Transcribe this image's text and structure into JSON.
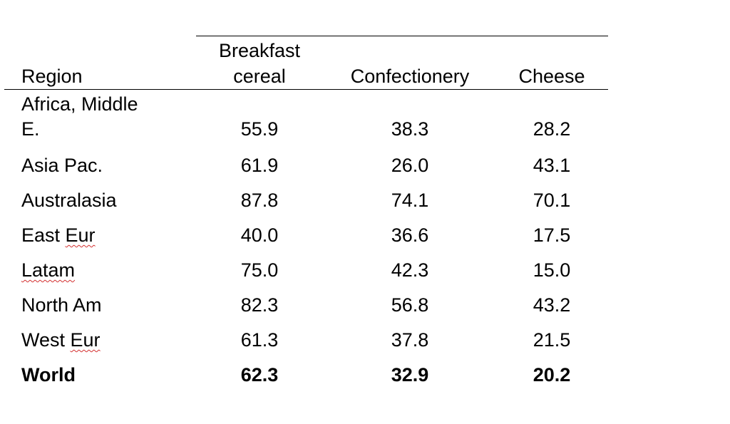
{
  "table": {
    "headers": {
      "region": "Region",
      "col1_line1": "Breakfast",
      "col1_line2": "cereal",
      "col2": "Confectionery",
      "col3": "Cheese"
    },
    "rows": [
      {
        "region_line1": "Africa, Middle",
        "region_line2": "E.",
        "v1": "55.9",
        "v2": "38.3",
        "v3": "28.2"
      },
      {
        "region": "Asia Pac.",
        "v1": "61.9",
        "v2": "26.0",
        "v3": "43.1"
      },
      {
        "region": "Australasia",
        "v1": "87.8",
        "v2": "74.1",
        "v3": "70.1"
      },
      {
        "region_a": "East ",
        "region_b": "Eur",
        "v1": "40.0",
        "v2": "36.6",
        "v3": "17.5"
      },
      {
        "region": "Latam",
        "v1": "75.0",
        "v2": "42.3",
        "v3": "15.0"
      },
      {
        "region": "North Am",
        "v1": "82.3",
        "v2": "56.8",
        "v3": "43.2"
      },
      {
        "region_a": "West ",
        "region_b": "Eur",
        "v1": "61.3",
        "v2": "37.8",
        "v3": "21.5"
      }
    ],
    "total": {
      "region": "World",
      "v1": "62.3",
      "v2": "32.9",
      "v3": "20.2"
    }
  }
}
